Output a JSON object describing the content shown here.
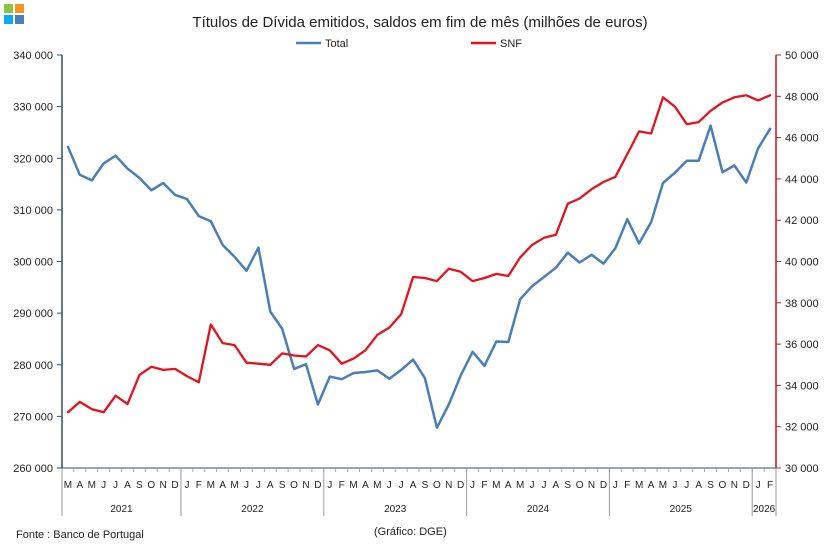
{
  "logo": {
    "colors": [
      "#8cc63f",
      "#f7941d",
      "#00aeef",
      "#4a7ebb"
    ]
  },
  "footer": {
    "source": "Fonte : Banco de Portugal",
    "credit": "(Gráfico: DGE)"
  },
  "chart_data": {
    "type": "line",
    "title": "Títulos de Dívida emitidos, saldos em fim de mês  (milhões de euros)",
    "legend_position": "top",
    "grid": false,
    "x": [
      "2021-03",
      "2021-04",
      "2021-05",
      "2021-06",
      "2021-07",
      "2021-08",
      "2021-09",
      "2021-10",
      "2021-11",
      "2021-12",
      "2022-01",
      "2022-02",
      "2022-03",
      "2022-04",
      "2022-05",
      "2022-06",
      "2022-07",
      "2022-08",
      "2022-09",
      "2022-10",
      "2022-11",
      "2022-12",
      "2023-01",
      "2023-02",
      "2023-03",
      "2023-04",
      "2023-05",
      "2023-06",
      "2023-07",
      "2023-08",
      "2023-09",
      "2023-10",
      "2023-11",
      "2023-12",
      "2024-01",
      "2024-02",
      "2024-03",
      "2024-04",
      "2024-05",
      "2024-06",
      "2024-07",
      "2024-08",
      "2024-09",
      "2024-10",
      "2024-11",
      "2024-12",
      "2025-01",
      "2025-02",
      "2025-03",
      "2025-04",
      "2025-05",
      "2025-06",
      "2025-07",
      "2025-08",
      "2025-09",
      "2025-10",
      "2025-11",
      "2025-12",
      "2026-01",
      "2026-02"
    ],
    "month_labels": [
      "M",
      "A",
      "M",
      "J",
      "J",
      "A",
      "S",
      "O",
      "N",
      "D",
      "J",
      "F",
      "M",
      "A",
      "M",
      "J",
      "J",
      "A",
      "S",
      "O",
      "N",
      "D",
      "J",
      "F",
      "M",
      "A",
      "M",
      "J",
      "J",
      "A",
      "S",
      "O",
      "N",
      "D",
      "J",
      "F",
      "M",
      "A",
      "M",
      "J",
      "J",
      "A",
      "S",
      "O",
      "N",
      "D",
      "J",
      "F",
      "M",
      "A",
      "M",
      "J",
      "J",
      "A",
      "S",
      "O",
      "N",
      "D",
      "J",
      "F"
    ],
    "years": [
      {
        "label": "2021",
        "start": 0,
        "end": 10
      },
      {
        "label": "2022",
        "start": 10,
        "end": 22
      },
      {
        "label": "2023",
        "start": 22,
        "end": 34
      },
      {
        "label": "2024",
        "start": 34,
        "end": 46
      },
      {
        "label": "2025",
        "start": 46,
        "end": 58
      },
      {
        "label": "2026",
        "start": 58,
        "end": 60
      }
    ],
    "y_left": {
      "min": 260000,
      "max": 340000,
      "step": 10000,
      "tick_labels": [
        "260 000",
        "270 000",
        "280 000",
        "290 000",
        "300 000",
        "310 000",
        "320 000",
        "330 000",
        "340 000"
      ]
    },
    "y_right": {
      "min": 30000,
      "max": 50000,
      "step": 2000,
      "tick_labels": [
        "30 000",
        "32 000",
        "34 000",
        "36 000",
        "38 000",
        "40 000",
        "42 000",
        "44 000",
        "46 000",
        "48 000",
        "50 000"
      ]
    },
    "series": [
      {
        "name": "Total",
        "axis": "left",
        "color": "#4a7ebb",
        "values": [
          322200,
          316800,
          315700,
          319000,
          320500,
          318000,
          316200,
          313800,
          315200,
          312900,
          312100,
          308800,
          307800,
          303200,
          300900,
          298200,
          302700,
          290300,
          287000,
          279200,
          280100,
          272300,
          277700,
          277200,
          278400,
          278600,
          278900,
          277300,
          279000,
          281000,
          277400,
          267800,
          272300,
          277900,
          282500,
          279800,
          284500,
          284400,
          292700,
          295200,
          297000,
          298800,
          301700,
          299800,
          301300,
          299600,
          302600,
          308200,
          303500,
          307600,
          315200,
          317200,
          319500,
          319500,
          326300,
          317300,
          318600,
          315300,
          321900,
          325700
        ]
      },
      {
        "name": "SNF",
        "axis": "right",
        "color": "#e3141c",
        "values": [
          32700,
          33200,
          32850,
          32700,
          33500,
          33100,
          34500,
          34900,
          34750,
          34800,
          34450,
          34150,
          36950,
          36050,
          35950,
          35100,
          35050,
          35000,
          35550,
          35450,
          35400,
          35950,
          35700,
          35050,
          35300,
          35700,
          36450,
          36800,
          37450,
          39250,
          39200,
          39050,
          39650,
          39500,
          39050,
          39200,
          39400,
          39300,
          40200,
          40800,
          41150,
          41300,
          42800,
          43050,
          43500,
          43850,
          44100,
          45200,
          46300,
          46200,
          47950,
          47500,
          46650,
          46750,
          47300,
          47700,
          47950,
          48050,
          47800,
          48050
        ]
      }
    ]
  }
}
